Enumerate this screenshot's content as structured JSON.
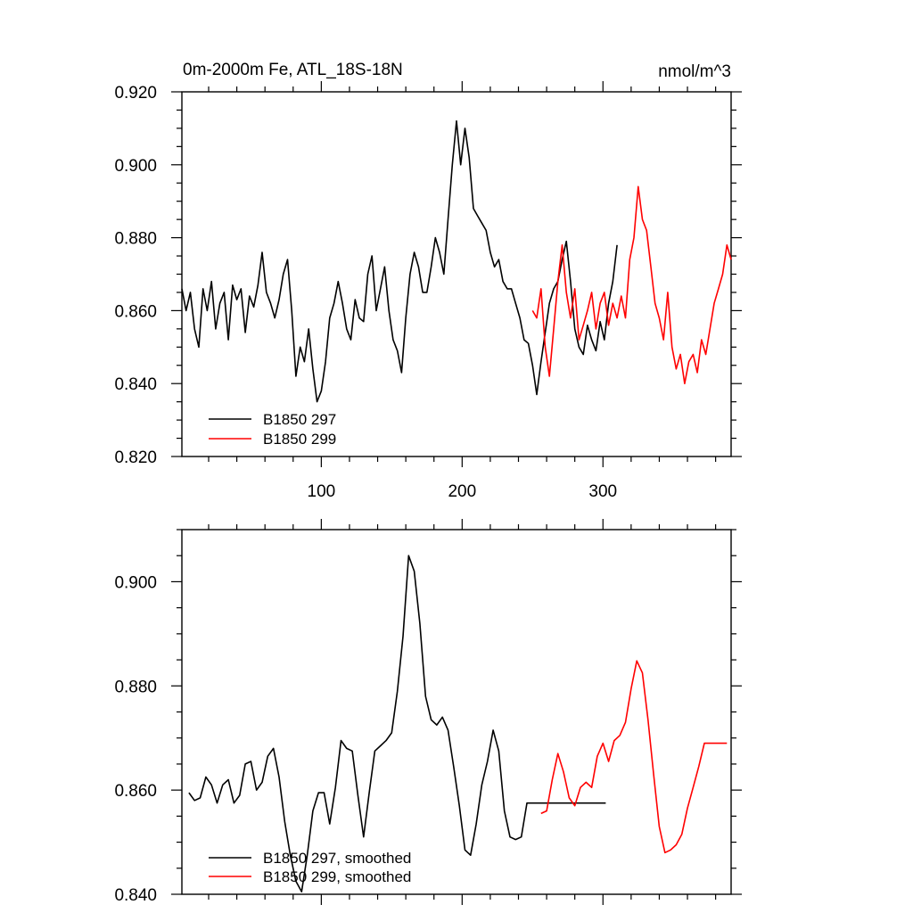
{
  "chart_data": [
    {
      "type": "line",
      "title": "0m-2000m Fe, ATL_18S-18N",
      "units": "nmol/m^3",
      "xlim": [
        1,
        391
      ],
      "ylim": [
        0.82,
        0.92
      ],
      "xticks": [
        100,
        200,
        300
      ],
      "xtick_labels": [
        "100",
        "200",
        "300"
      ],
      "yticks": [
        0.82,
        0.84,
        0.86,
        0.88,
        0.9,
        0.92
      ],
      "ytick_labels": [
        "0.820",
        "0.840",
        "0.860",
        "0.880",
        "0.900",
        "0.920"
      ],
      "legend_position": "bottom-left",
      "series": [
        {
          "name": "B1850 297",
          "color": "#000000",
          "x": [
            1,
            4,
            7,
            10,
            13,
            16,
            19,
            22,
            25,
            28,
            31,
            34,
            37,
            40,
            43,
            46,
            49,
            52,
            55,
            58,
            61,
            64,
            67,
            70,
            73,
            76,
            79,
            82,
            85,
            88,
            91,
            94,
            97,
            100,
            103,
            106,
            109,
            112,
            115,
            118,
            121,
            124,
            127,
            130,
            133,
            136,
            139,
            142,
            145,
            148,
            151,
            154,
            157,
            160,
            163,
            166,
            169,
            172,
            175,
            178,
            181,
            184,
            187,
            190,
            193,
            196,
            199,
            202,
            205,
            208,
            211,
            214,
            217,
            220,
            223,
            226,
            229,
            232,
            235,
            238,
            241,
            244,
            247,
            250,
            253,
            256,
            259,
            262,
            265,
            268,
            271,
            274,
            277,
            280,
            283,
            286,
            289,
            292,
            295,
            298,
            301,
            304,
            307,
            310
          ],
          "values": [
            0.866,
            0.86,
            0.865,
            0.855,
            0.85,
            0.866,
            0.86,
            0.868,
            0.855,
            0.862,
            0.865,
            0.852,
            0.867,
            0.863,
            0.866,
            0.854,
            0.864,
            0.861,
            0.867,
            0.876,
            0.865,
            0.862,
            0.858,
            0.863,
            0.87,
            0.874,
            0.86,
            0.842,
            0.85,
            0.846,
            0.855,
            0.844,
            0.835,
            0.838,
            0.846,
            0.858,
            0.862,
            0.868,
            0.862,
            0.855,
            0.852,
            0.863,
            0.858,
            0.857,
            0.87,
            0.875,
            0.86,
            0.866,
            0.872,
            0.86,
            0.852,
            0.849,
            0.843,
            0.858,
            0.87,
            0.876,
            0.872,
            0.865,
            0.865,
            0.872,
            0.88,
            0.876,
            0.87,
            0.885,
            0.9,
            0.912,
            0.9,
            0.91,
            0.902,
            0.888,
            0.886,
            0.884,
            0.882,
            0.876,
            0.872,
            0.874,
            0.868,
            0.866,
            0.866,
            0.862,
            0.858,
            0.852,
            0.851,
            0.845,
            0.837,
            0.846,
            0.854,
            0.862,
            0.866,
            0.868,
            0.874,
            0.879,
            0.868,
            0.855,
            0.85,
            0.848,
            0.856,
            0.852,
            0.849,
            0.857,
            0.852,
            0.862,
            0.868,
            0.878
          ]
        },
        {
          "name": "B1850 299",
          "color": "#ff0000",
          "x": [
            250,
            253,
            256,
            259,
            262,
            265,
            268,
            271,
            274,
            277,
            280,
            283,
            286,
            289,
            292,
            295,
            298,
            301,
            304,
            307,
            310,
            313,
            316,
            319,
            322,
            325,
            328,
            331,
            334,
            337,
            340,
            343,
            346,
            349,
            352,
            355,
            358,
            361,
            364,
            367,
            370,
            373,
            376,
            379,
            382,
            385,
            388,
            391
          ],
          "values": [
            0.86,
            0.858,
            0.866,
            0.85,
            0.842,
            0.855,
            0.868,
            0.878,
            0.865,
            0.858,
            0.866,
            0.852,
            0.856,
            0.86,
            0.865,
            0.855,
            0.862,
            0.865,
            0.856,
            0.862,
            0.858,
            0.864,
            0.858,
            0.874,
            0.88,
            0.894,
            0.885,
            0.882,
            0.872,
            0.862,
            0.858,
            0.852,
            0.865,
            0.85,
            0.844,
            0.848,
            0.84,
            0.846,
            0.848,
            0.843,
            0.852,
            0.848,
            0.855,
            0.862,
            0.866,
            0.87,
            0.878,
            0.874
          ]
        }
      ]
    },
    {
      "type": "line",
      "title": "",
      "xlim": [
        1,
        391
      ],
      "ylim": [
        0.84,
        0.91
      ],
      "xticks": [
        100,
        200,
        300
      ],
      "xtick_labels": [
        "",
        "",
        ""
      ],
      "yticks": [
        0.84,
        0.86,
        0.88,
        0.9
      ],
      "ytick_labels": [
        "0.840",
        "0.860",
        "0.880",
        "0.900"
      ],
      "legend_position": "bottom-left",
      "series": [
        {
          "name": "B1850 297, smoothed",
          "color": "#000000",
          "x": [
            6,
            10,
            14,
            18,
            22,
            26,
            30,
            34,
            38,
            42,
            46,
            50,
            54,
            58,
            62,
            66,
            70,
            74,
            78,
            82,
            86,
            90,
            94,
            98,
            102,
            106,
            110,
            114,
            118,
            122,
            126,
            130,
            134,
            138,
            142,
            146,
            150,
            154,
            158,
            162,
            166,
            170,
            174,
            178,
            182,
            186,
            190,
            194,
            198,
            202,
            206,
            210,
            214,
            218,
            222,
            226,
            230,
            234,
            238,
            242,
            246,
            250,
            254,
            258,
            262,
            266,
            270,
            274,
            278,
            282,
            286,
            290,
            294,
            298,
            302
          ],
          "values": [
            0.8595,
            0.858,
            0.8585,
            0.8625,
            0.861,
            0.8575,
            0.861,
            0.862,
            0.8575,
            0.859,
            0.865,
            0.8655,
            0.86,
            0.8615,
            0.8665,
            0.868,
            0.8625,
            0.854,
            0.8475,
            0.8425,
            0.8405,
            0.8475,
            0.856,
            0.8595,
            0.8595,
            0.8535,
            0.8605,
            0.8695,
            0.868,
            0.8675,
            0.859,
            0.851,
            0.8595,
            0.8675,
            0.8685,
            0.8695,
            0.871,
            0.879,
            0.8895,
            0.905,
            0.902,
            0.892,
            0.878,
            0.8735,
            0.8725,
            0.874,
            0.8715,
            0.8645,
            0.857,
            0.8485,
            0.8475,
            0.8535,
            0.861,
            0.8655,
            0.8715,
            0.8675,
            0.856,
            0.851,
            0.8505,
            0.851,
            0.8575,
            0.8575,
            0.8575,
            0.8575,
            0.8575,
            0.8575,
            0.8575,
            0.8575,
            0.8575,
            0.8575,
            0.8575,
            0.8575,
            0.8575,
            0.8575,
            0.8575
          ]
        },
        {
          "name": "B1850 299, smoothed",
          "color": "#ff0000",
          "x": [
            256,
            260,
            264,
            268,
            272,
            276,
            280,
            284,
            288,
            292,
            296,
            300,
            304,
            308,
            312,
            316,
            320,
            324,
            328,
            332,
            336,
            340,
            344,
            348,
            352,
            356,
            360,
            364,
            368,
            372,
            376,
            380,
            384,
            388
          ],
          "values": [
            0.8555,
            0.856,
            0.862,
            0.867,
            0.8635,
            0.8585,
            0.857,
            0.8605,
            0.8615,
            0.8605,
            0.8665,
            0.869,
            0.8655,
            0.8695,
            0.8705,
            0.873,
            0.8795,
            0.8848,
            0.8825,
            0.8735,
            0.863,
            0.853,
            0.848,
            0.8485,
            0.8495,
            0.8515,
            0.8565,
            0.8605,
            0.8645,
            0.869,
            0.869,
            0.869,
            0.869,
            0.869
          ]
        }
      ]
    }
  ]
}
